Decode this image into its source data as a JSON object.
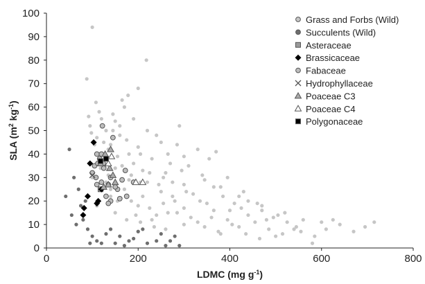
{
  "colors": {
    "grass": "#c6c6c6",
    "succulent": "#6e6e6e",
    "asteraceae_fill": "#9a9a9a",
    "fabaceae_fill": "#bdbdbd",
    "marker_edge": "#555555",
    "axis": "#222222"
  },
  "chart_data": {
    "type": "scatter",
    "title": "",
    "xlabel_parts": [
      "LDMC (mg g",
      "-1",
      ")"
    ],
    "ylabel_parts": [
      "SLA (m",
      "2",
      " kg",
      "-1",
      ")"
    ],
    "xlim": [
      0,
      800
    ],
    "ylim": [
      0,
      100
    ],
    "xticks": [
      0,
      200,
      400,
      600,
      800
    ],
    "yticks": [
      0,
      10,
      20,
      30,
      40,
      50,
      60,
      70,
      80,
      90,
      100
    ],
    "grid": false,
    "legend_position": "top-right",
    "series": [
      {
        "name": "Grass and Forbs (Wild)",
        "marker": "dot",
        "color": "#c6c6c6",
        "points": [
          [
            100,
            94
          ],
          [
            218,
            80
          ],
          [
            88,
            72
          ],
          [
            200,
            68
          ],
          [
            178,
            65
          ],
          [
            170,
            60
          ],
          [
            92,
            56
          ],
          [
            120,
            55
          ],
          [
            150,
            54
          ],
          [
            290,
            52
          ],
          [
            130,
            50
          ],
          [
            160,
            48
          ],
          [
            110,
            47
          ],
          [
            250,
            45
          ],
          [
            140,
            44
          ],
          [
            200,
            43
          ],
          [
            330,
            42
          ],
          [
            370,
            41
          ],
          [
            180,
            40
          ],
          [
            230,
            38
          ],
          [
            120,
            37
          ],
          [
            270,
            36
          ],
          [
            310,
            35
          ],
          [
            150,
            34
          ],
          [
            210,
            33
          ],
          [
            260,
            32
          ],
          [
            340,
            31
          ],
          [
            100,
            30
          ],
          [
            180,
            29
          ],
          [
            220,
            28
          ],
          [
            300,
            27
          ],
          [
            380,
            26
          ],
          [
            140,
            25
          ],
          [
            250,
            24
          ],
          [
            320,
            23
          ],
          [
            420,
            22
          ],
          [
            160,
            21
          ],
          [
            280,
            20
          ],
          [
            350,
            19
          ],
          [
            460,
            19
          ],
          [
            200,
            18
          ],
          [
            300,
            17
          ],
          [
            400,
            16
          ],
          [
            520,
            15
          ],
          [
            240,
            14
          ],
          [
            360,
            13
          ],
          [
            480,
            12
          ],
          [
            600,
            11
          ],
          [
            715,
            11
          ],
          [
            300,
            10
          ],
          [
            420,
            9
          ],
          [
            540,
            8
          ],
          [
            670,
            7
          ],
          [
            260,
            8
          ],
          [
            380,
            6
          ],
          [
            500,
            5
          ],
          [
            580,
            2
          ],
          [
            610,
            8
          ],
          [
            640,
            10
          ],
          [
            560,
            12
          ],
          [
            440,
            14
          ],
          [
            330,
            11
          ],
          [
            230,
            12
          ],
          [
            150,
            15
          ],
          [
            110,
            18
          ],
          [
            125,
            26
          ],
          [
            135,
            31
          ],
          [
            190,
            36
          ],
          [
            205,
            40
          ],
          [
            175,
            46
          ],
          [
            145,
            50
          ],
          [
            115,
            58
          ],
          [
            165,
            63
          ],
          [
            95,
            52
          ],
          [
            240,
            48
          ],
          [
            285,
            44
          ],
          [
            355,
            38
          ],
          [
            395,
            30
          ],
          [
            430,
            24
          ],
          [
            470,
            18
          ],
          [
            505,
            14
          ],
          [
            545,
            9
          ],
          [
            625,
            12
          ],
          [
            695,
            9
          ],
          [
            210,
            22
          ],
          [
            245,
            27
          ],
          [
            275,
            22
          ],
          [
            305,
            24
          ],
          [
            335,
            20
          ],
          [
            365,
            16
          ],
          [
            395,
            12
          ],
          [
            425,
            17
          ],
          [
            455,
            11
          ],
          [
            485,
            8
          ],
          [
            515,
            6
          ],
          [
            195,
            14
          ],
          [
            225,
            17
          ],
          [
            255,
            19
          ],
          [
            285,
            15
          ],
          [
            315,
            13
          ],
          [
            345,
            9
          ],
          [
            375,
            7
          ],
          [
            405,
            10
          ],
          [
            435,
            6
          ],
          [
            465,
            4
          ],
          [
            170,
            25
          ],
          [
            185,
            20
          ],
          [
            205,
            28
          ],
          [
            225,
            32
          ],
          [
            255,
            30
          ],
          [
            275,
            28
          ],
          [
            295,
            33
          ],
          [
            185,
            31
          ],
          [
            165,
            35
          ],
          [
            155,
            39
          ],
          [
            135,
            42
          ],
          [
            125,
            45
          ],
          [
            145,
            57
          ],
          [
            160,
            52
          ],
          [
            108,
            62
          ],
          [
            190,
            55
          ],
          [
            220,
            50
          ],
          [
            265,
            40
          ],
          [
            300,
            39
          ],
          [
            345,
            29
          ],
          [
            365,
            26
          ],
          [
            385,
            22
          ],
          [
            410,
            19
          ],
          [
            440,
            20
          ],
          [
            470,
            16
          ],
          [
            495,
            13
          ],
          [
            525,
            11
          ],
          [
            555,
            7
          ],
          [
            585,
            5
          ],
          [
            265,
            15
          ],
          [
            235,
            9
          ],
          [
            205,
            11
          ],
          [
            175,
            12
          ],
          [
            155,
            20
          ],
          [
            140,
            22
          ],
          [
            130,
            28
          ],
          [
            118,
            34
          ],
          [
            112,
            40
          ],
          [
            105,
            44
          ],
          [
            98,
            49
          ]
        ]
      },
      {
        "name": "Succulents (Wild)",
        "marker": "dot",
        "color": "#6e6e6e",
        "points": [
          [
            50,
            42
          ],
          [
            42,
            22
          ],
          [
            60,
            30
          ],
          [
            70,
            25
          ],
          [
            80,
            12
          ],
          [
            90,
            8
          ],
          [
            100,
            5
          ],
          [
            110,
            3
          ],
          [
            120,
            2
          ],
          [
            130,
            6
          ],
          [
            150,
            2
          ],
          [
            170,
            1
          ],
          [
            190,
            4
          ],
          [
            210,
            8
          ],
          [
            240,
            3
          ],
          [
            260,
            1
          ],
          [
            280,
            5
          ],
          [
            75,
            18
          ],
          [
            65,
            10
          ],
          [
            55,
            14
          ],
          [
            85,
            20
          ],
          [
            95,
            2
          ],
          [
            140,
            8
          ],
          [
            160,
            5
          ],
          [
            180,
            3
          ],
          [
            200,
            7
          ],
          [
            220,
            2
          ],
          [
            250,
            6
          ],
          [
            270,
            3
          ],
          [
            290,
            1
          ]
        ]
      },
      {
        "name": "Asteraceae",
        "marker": "square",
        "color": "#9a9a9a",
        "points": [
          [
            118,
            25
          ],
          [
            130,
            38
          ]
        ]
      },
      {
        "name": "Brassicaceae",
        "marker": "diamond",
        "color": "#000000",
        "points": [
          [
            103,
            45
          ],
          [
            95,
            36
          ],
          [
            90,
            22
          ],
          [
            82,
            17
          ],
          [
            80,
            14
          ],
          [
            110,
            19
          ],
          [
            120,
            25
          ],
          [
            113,
            20
          ]
        ]
      },
      {
        "name": "Fabaceae",
        "marker": "circle",
        "color": "#bdbdbd",
        "points": [
          [
            122,
            52
          ],
          [
            145,
            47
          ],
          [
            110,
            40
          ],
          [
            120,
            40
          ],
          [
            130,
            38
          ],
          [
            105,
            35
          ],
          [
            112,
            36
          ],
          [
            125,
            34
          ],
          [
            100,
            32
          ],
          [
            108,
            30
          ],
          [
            140,
            30
          ],
          [
            120,
            28
          ],
          [
            135,
            27
          ],
          [
            165,
            29
          ],
          [
            172,
            33
          ],
          [
            110,
            27
          ],
          [
            140,
            20
          ],
          [
            160,
            21
          ],
          [
            175,
            22
          ],
          [
            190,
            28
          ],
          [
            155,
            25
          ],
          [
            130,
            22
          ],
          [
            135,
            19
          ],
          [
            150,
            26
          ],
          [
            116,
            38
          ],
          [
            124,
            36
          ]
        ]
      },
      {
        "name": "Hydrophyllaceae",
        "marker": "x",
        "color": "#555555",
        "points": [
          [
            100,
            31
          ]
        ]
      },
      {
        "name": "Poaceae C3",
        "marker": "triangle",
        "color": "#aaaaaa",
        "points": [
          [
            140,
            42
          ],
          [
            128,
            40
          ],
          [
            118,
            36
          ],
          [
            138,
            34
          ],
          [
            145,
            31
          ],
          [
            135,
            27
          ],
          [
            150,
            28
          ],
          [
            125,
            26
          ]
        ]
      },
      {
        "name": "Poaceae C4",
        "marker": "triangle",
        "color": "#ffffff",
        "points": [
          [
            195,
            28
          ],
          [
            210,
            28
          ],
          [
            135,
            36
          ],
          [
            142,
            39
          ]
        ]
      },
      {
        "name": "Polygonaceae",
        "marker": "square",
        "color": "#000000",
        "points": [
          [
            130,
            38
          ],
          [
            118,
            37
          ]
        ]
      }
    ]
  }
}
